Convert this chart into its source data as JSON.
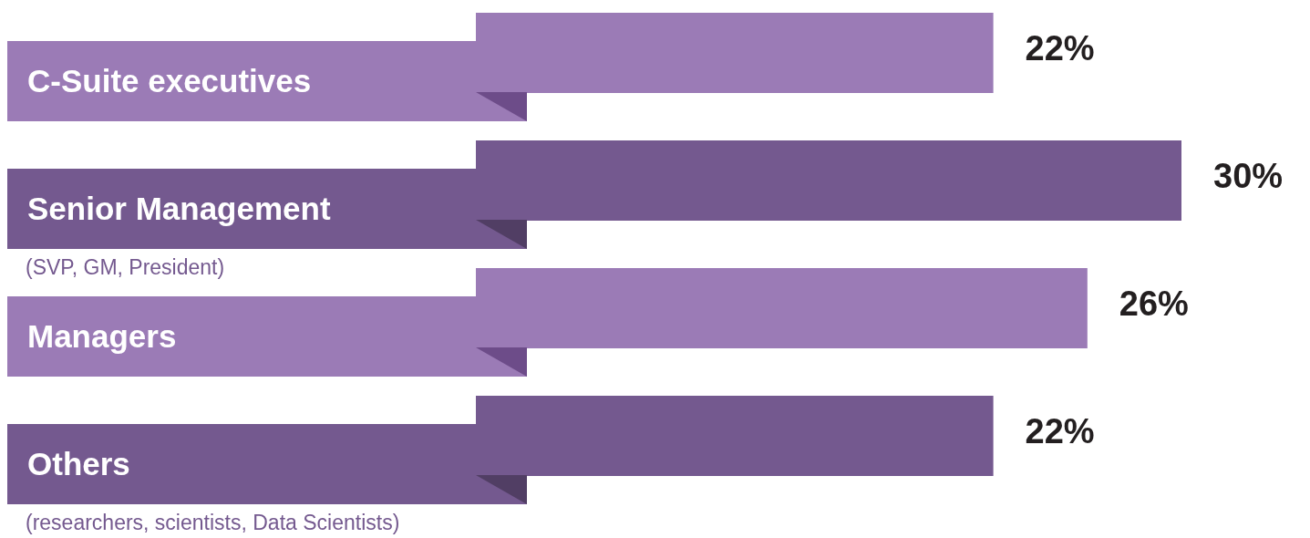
{
  "chart_data": {
    "type": "bar",
    "orientation": "horizontal",
    "categories": [
      "C-Suite executives",
      "Senior Management\n(SVP, GM, President)",
      "Managers",
      "Others\n(researchers, scientists, Data Scientists)"
    ],
    "values": [
      22,
      30,
      26,
      22
    ],
    "value_labels": [
      "22%",
      "30%",
      "26%",
      "22%"
    ],
    "colors": [
      "#9b7bb6",
      "#74598f",
      "#9b7bb6",
      "#74598f"
    ]
  }
}
